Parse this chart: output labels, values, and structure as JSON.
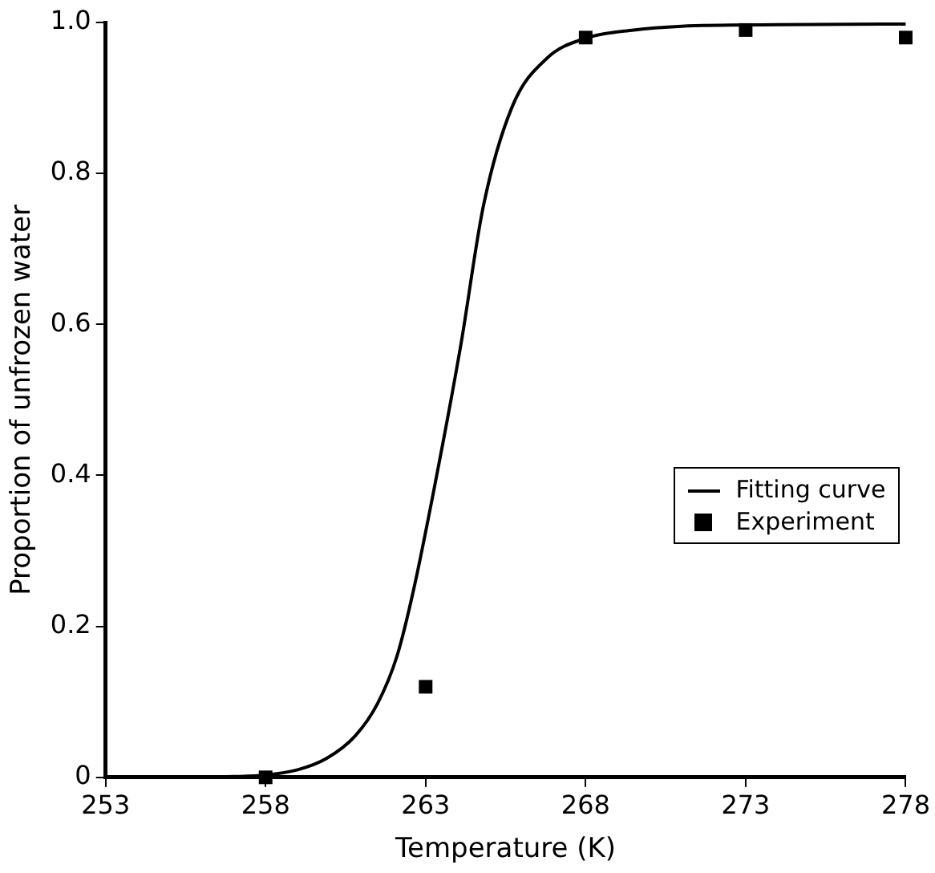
{
  "chart_data": {
    "type": "scatter",
    "xlabel": "Temperature (K)",
    "ylabel": "Proportion of unfrozen water",
    "xlim": [
      253,
      278
    ],
    "xticks": [
      253,
      258,
      263,
      268,
      273,
      278
    ],
    "ylim": [
      0,
      1
    ],
    "yticks": [
      0,
      0.2,
      0.4,
      0.6,
      0.8,
      {
        "value": 1,
        "label": "1.0"
      }
    ],
    "grid": false,
    "legend": "right",
    "series": [
      {
        "name": "Fitting curve",
        "type": "line",
        "color": "#000000",
        "marker": "none",
        "line_style": "solid",
        "x": [
          253,
          255,
          257,
          258,
          259,
          259.9,
          260.8,
          261.5,
          262.1,
          262.6,
          263.3,
          264.1,
          264.8,
          265.7,
          266.8,
          268,
          269.5,
          271,
          274,
          278
        ],
        "values": [
          0,
          0,
          0.001,
          0.003,
          0.01,
          0.025,
          0.055,
          0.098,
          0.16,
          0.244,
          0.39,
          0.573,
          0.756,
          0.888,
          0.953,
          0.979,
          0.99,
          0.995,
          0.997,
          0.998
        ]
      },
      {
        "name": "Experiment",
        "color": "#000000",
        "marker": "square",
        "x": [
          258,
          263,
          268,
          273,
          278
        ],
        "values": [
          0,
          0.12,
          0.98,
          0.99,
          0.98
        ]
      }
    ]
  }
}
